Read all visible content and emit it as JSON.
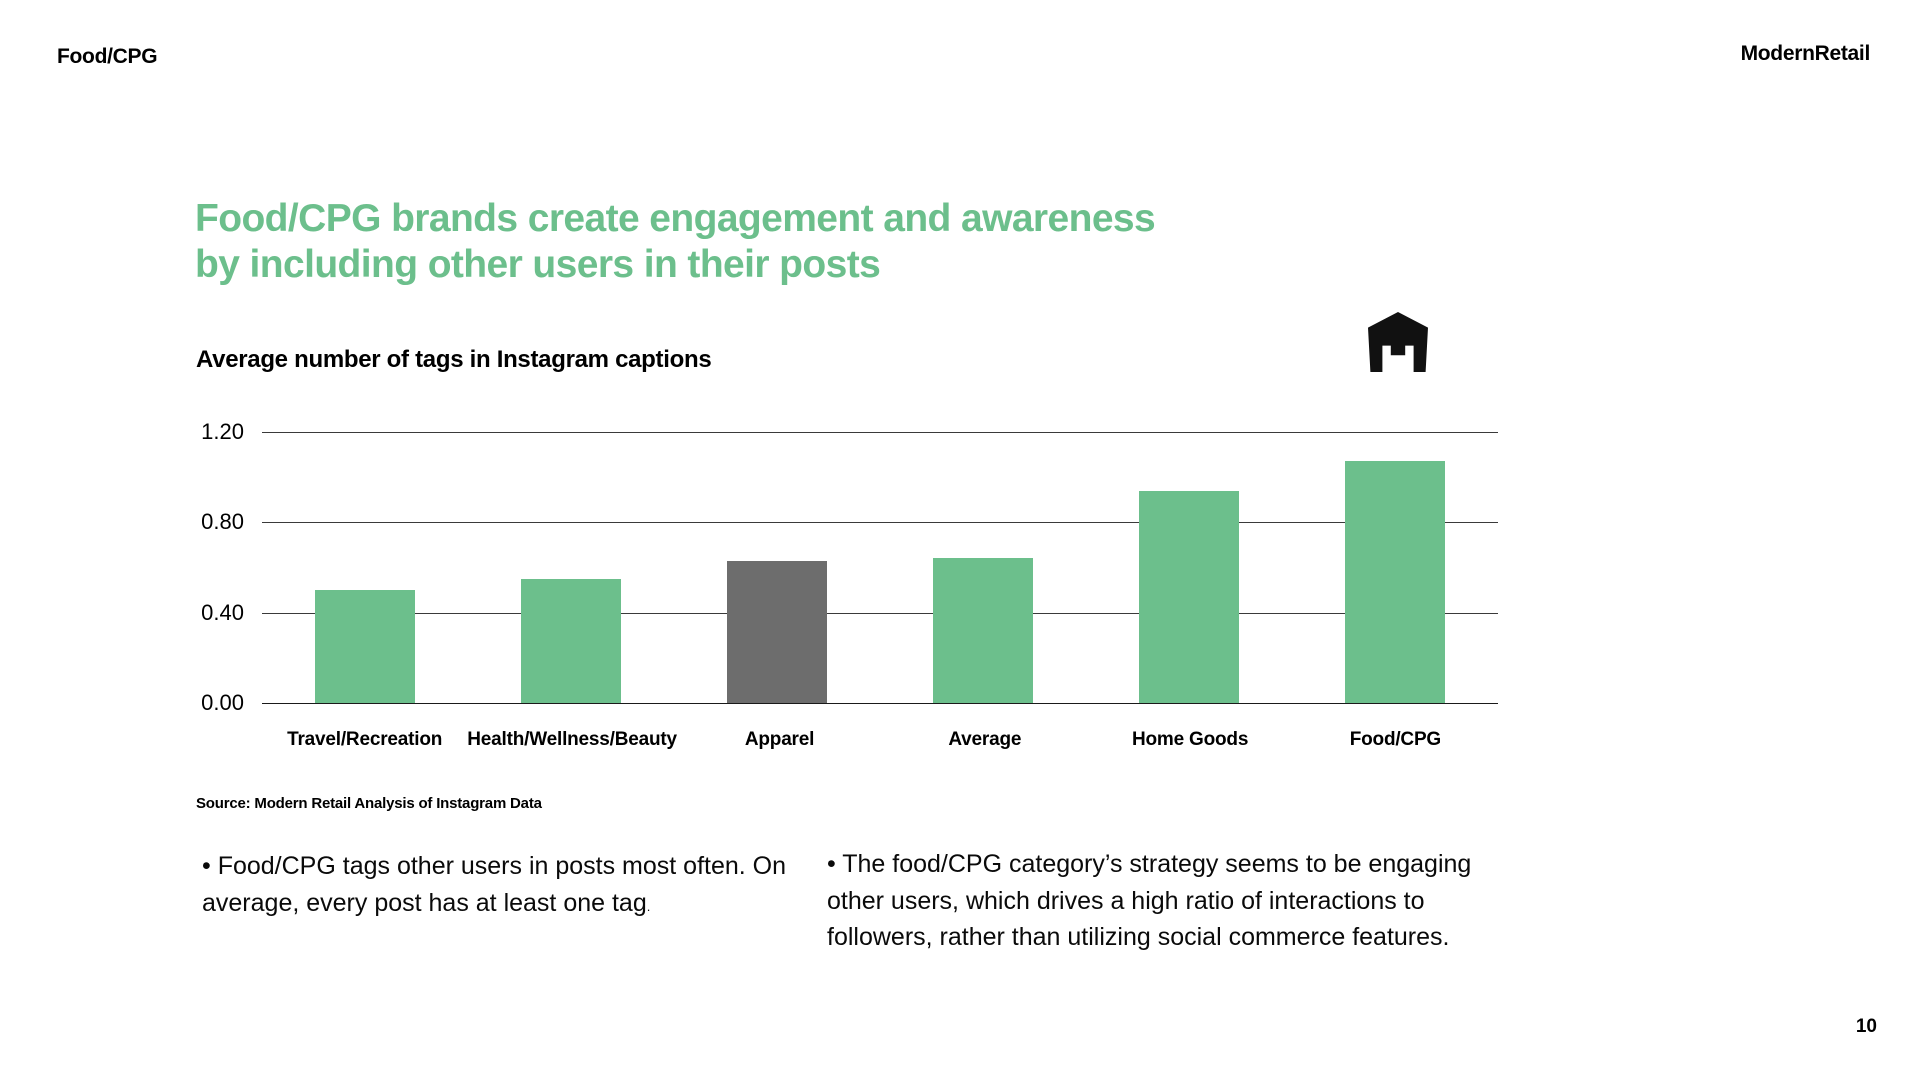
{
  "colors": {
    "accent_green": "#6CBF8C",
    "highlight_gray": "#6D6D6D",
    "text_black": "#000000",
    "gridline": "#3a3a3a"
  },
  "header": {
    "section_label": "Food/CPG",
    "brand": "ModernRetail"
  },
  "icons": {
    "logo_mark": "modern-retail-m-hexagon-icon"
  },
  "title": {
    "line1": "Food/CPG brands create engagement and awareness",
    "line2": "by including other users in their posts"
  },
  "chart_data": {
    "type": "bar",
    "title": "Average number of tags in Instagram captions",
    "categories": [
      "Travel/Recreation",
      "Health/Wellness/Beauty",
      "Apparel",
      "Average",
      "Home Goods",
      "Food/CPG"
    ],
    "values": [
      0.5,
      0.55,
      0.63,
      0.64,
      0.94,
      1.07
    ],
    "bar_colors": [
      "#6CBF8C",
      "#6CBF8C",
      "#6D6D6D",
      "#6CBF8C",
      "#6CBF8C",
      "#6CBF8C"
    ],
    "xlabel": "",
    "ylabel": "",
    "ylim": [
      0,
      1.2
    ],
    "yticks": [
      1.2,
      0.8,
      0.4,
      0.0
    ],
    "ytick_labels": [
      "1.20",
      "0.80",
      "0.40",
      "0.00"
    ],
    "grid": true,
    "legend": false
  },
  "source": "Source: Modern Retail Analysis of Instagram Data",
  "bullets": {
    "left_main": "• Food/CPG tags other users in posts most often. On average, every post has at least one tag",
    "left_trailing_period": ".",
    "right": "• The food/CPG category’s strategy seems to be engaging other users, which drives a high ratio of interactions to followers, rather than utilizing social commerce features."
  },
  "footer": {
    "page_number": "10"
  }
}
